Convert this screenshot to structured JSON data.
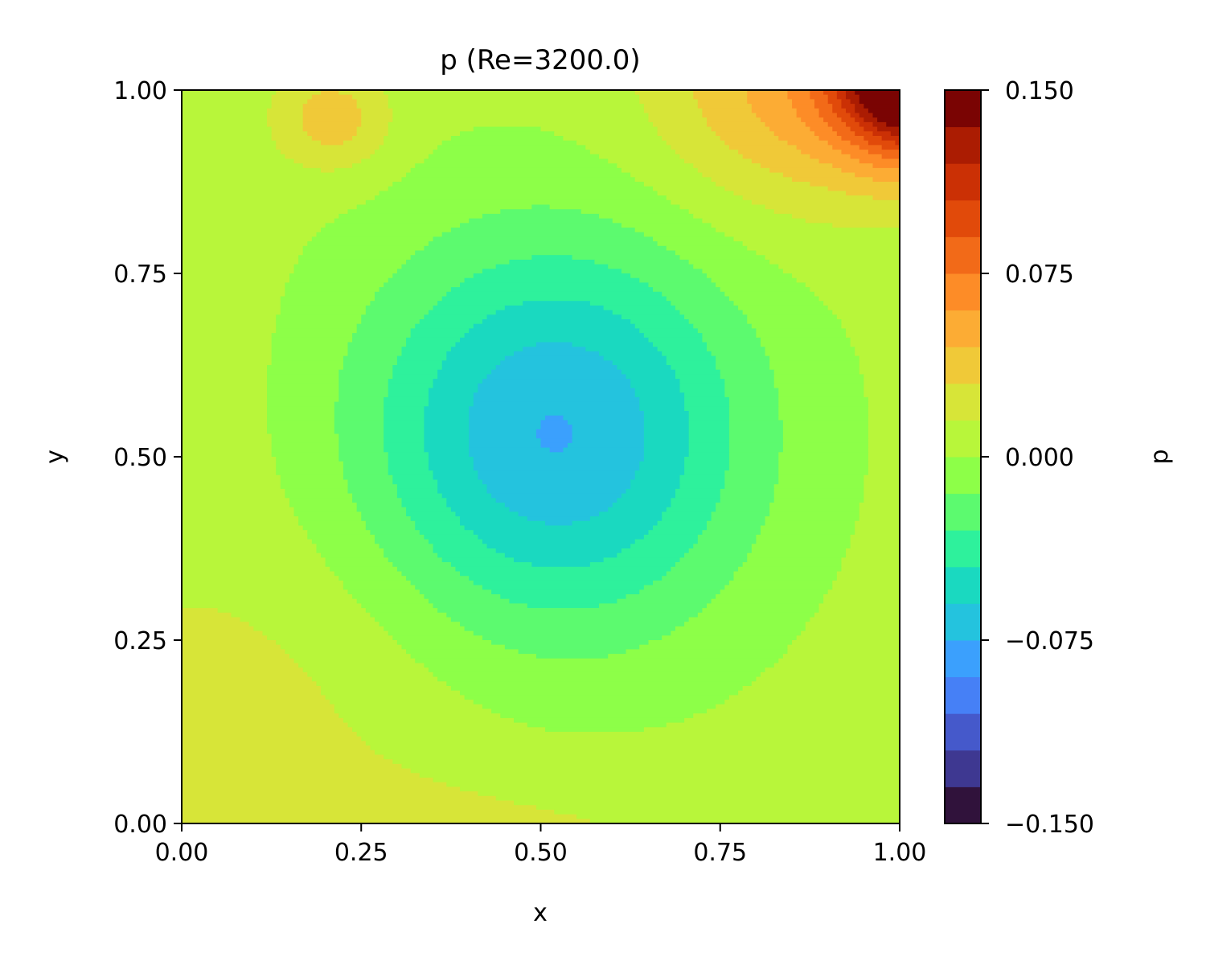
{
  "chart_data": {
    "type": "heatmap",
    "subtype": "filled-contour",
    "title": "p (Re=3200.0)",
    "xlabel": "x",
    "ylabel": "y",
    "colorbar_label": "p",
    "xlim": [
      0.0,
      1.0
    ],
    "ylim": [
      0.0,
      1.0
    ],
    "xticks": [
      "0.00",
      "0.25",
      "0.50",
      "0.75",
      "1.00"
    ],
    "yticks": [
      "0.00",
      "0.25",
      "0.50",
      "0.75",
      "1.00"
    ],
    "colorbar_range": [
      -0.15,
      0.15
    ],
    "colorbar_ticks": [
      {
        "value": -0.15,
        "label": "−0.150"
      },
      {
        "value": -0.075,
        "label": "−0.075"
      },
      {
        "value": 0.0,
        "label": "0.000"
      },
      {
        "value": 0.075,
        "label": "0.075"
      },
      {
        "value": 0.15,
        "label": "0.150"
      }
    ],
    "colormap": "turbo",
    "levels": 21,
    "level_colors": [
      "#30123b",
      "#3e3891",
      "#4559cb",
      "#4680f6",
      "#3ba0fd",
      "#24c3de",
      "#1ad9c0",
      "#2ef19c",
      "#5cfa6f",
      "#8dff48",
      "#b8f63a",
      "#d7e538",
      "#f0c938",
      "#fcac34",
      "#fd8c27",
      "#f26a18",
      "#e14a0a",
      "#cb3005",
      "#ab1c02",
      "#7a0403"
    ],
    "field_features": [
      {
        "description": "pressure minimum (vortex core)",
        "x": 0.52,
        "y": 0.53,
        "value": -0.07
      },
      {
        "description": "pressure maximum (top-right corner)",
        "x": 1.0,
        "y": 1.0,
        "value": 0.15
      },
      {
        "description": "local high near top-left",
        "x": 0.21,
        "y": 0.95,
        "value": 0.04
      },
      {
        "description": "raised plateau bottom-left / bottom edge",
        "x": 0.1,
        "y": 0.15,
        "value": 0.02
      }
    ],
    "grid": false
  }
}
